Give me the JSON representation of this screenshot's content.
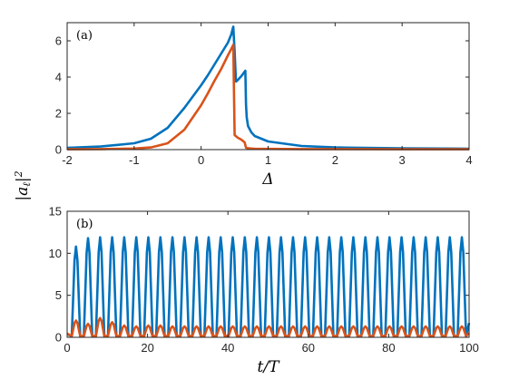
{
  "figure": {
    "shared_ylabel": "|a_ℓ|²"
  },
  "chart_data": [
    {
      "type": "line",
      "panel_label": "(a)",
      "xlabel": "Δ",
      "ylabel": "",
      "xlim": [
        -2,
        4
      ],
      "ylim": [
        0,
        7
      ],
      "xticks": [
        -2,
        -1,
        0,
        1,
        2,
        3,
        4
      ],
      "yticks": [
        0,
        2,
        4,
        6
      ],
      "grid": false,
      "series": [
        {
          "color": "#0072bd",
          "x": [
            -2.0,
            -1.5,
            -1.0,
            -0.75,
            -0.5,
            -0.25,
            0.0,
            0.1,
            0.2,
            0.3,
            0.4,
            0.45,
            0.48,
            0.5,
            0.52,
            0.55,
            0.6,
            0.65,
            0.66,
            0.67,
            0.68,
            0.7,
            0.75,
            0.8,
            1.0,
            1.5,
            2.0,
            3.0,
            4.0
          ],
          "y": [
            0.1,
            0.17,
            0.35,
            0.6,
            1.2,
            2.3,
            3.55,
            4.1,
            4.7,
            5.3,
            5.9,
            6.35,
            6.78,
            5.4,
            3.75,
            3.85,
            4.05,
            4.3,
            4.35,
            2.5,
            1.8,
            1.3,
            0.95,
            0.75,
            0.45,
            0.2,
            0.12,
            0.07,
            0.05
          ]
        },
        {
          "color": "#d95319",
          "x": [
            -2.0,
            -1.5,
            -1.0,
            -0.75,
            -0.5,
            -0.25,
            0.0,
            0.1,
            0.2,
            0.3,
            0.4,
            0.45,
            0.48,
            0.5,
            0.55,
            0.6,
            0.65,
            0.67,
            0.7,
            0.75,
            0.8,
            1.0,
            1.5,
            2.0,
            3.0,
            4.0
          ],
          "y": [
            0.02,
            0.03,
            0.06,
            0.12,
            0.35,
            1.1,
            2.45,
            3.1,
            3.8,
            4.45,
            5.2,
            5.55,
            5.78,
            0.8,
            0.65,
            0.55,
            0.4,
            0.1,
            0.08,
            0.06,
            0.05,
            0.04,
            0.03,
            0.03,
            0.02,
            0.02
          ]
        }
      ]
    },
    {
      "type": "line",
      "panel_label": "(b)",
      "xlabel": "t/T",
      "ylabel": "",
      "xlim": [
        0,
        100
      ],
      "ylim": [
        0,
        15
      ],
      "xticks": [
        0,
        20,
        40,
        60,
        80,
        100
      ],
      "yticks": [
        0,
        5,
        10,
        15
      ],
      "grid": false,
      "oscillation": {
        "period": 3.0,
        "first_peak_t": 2.2,
        "end_t": 100,
        "series": [
          {
            "color": "#0072bd",
            "peaks": [
              10.8,
              11.8,
              11.9,
              11.9,
              11.9,
              11.9,
              11.9,
              11.9,
              11.9,
              11.9,
              11.9,
              11.9,
              11.9,
              11.9,
              11.9,
              11.9,
              11.9,
              11.9,
              11.9,
              11.9,
              11.9,
              11.9,
              11.9,
              11.9,
              11.9,
              11.9,
              11.9,
              11.9,
              11.9,
              11.9,
              11.9,
              11.9,
              11.9
            ],
            "trough": 0.1,
            "final_value": 1.7
          },
          {
            "color": "#d95319",
            "peaks": [
              2.0,
              1.6,
              2.3,
              1.8,
              1.4,
              1.3,
              1.4,
              1.4,
              1.3,
              1.3,
              1.3,
              1.3,
              1.3,
              1.3,
              1.3,
              1.3,
              1.3,
              1.3,
              1.3,
              1.3,
              1.3,
              1.3,
              1.3,
              1.3,
              1.3,
              1.3,
              1.3,
              1.3,
              1.3,
              1.3,
              1.3,
              1.3,
              1.3
            ],
            "trough": 0.15,
            "final_value": 0.5
          }
        ]
      }
    }
  ]
}
